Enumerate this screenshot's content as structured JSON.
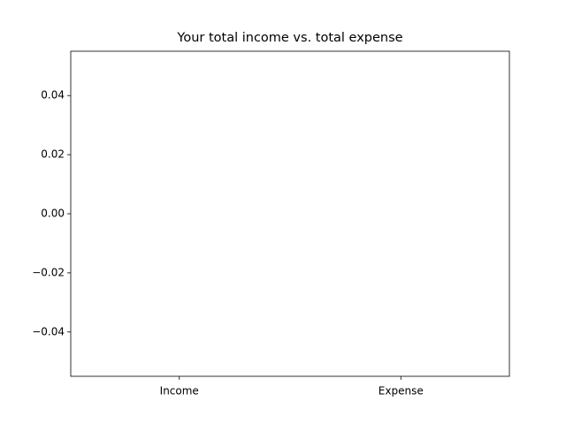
{
  "chart_data": {
    "type": "bar",
    "title": "Your total income vs. total expense",
    "categories": [
      "Income",
      "Expense"
    ],
    "values": [
      0,
      0
    ],
    "color": "#1f77b4",
    "ylim": [
      -0.055,
      0.055
    ],
    "yticks": [
      {
        "value": -0.04,
        "label": "−0.04"
      },
      {
        "value": -0.02,
        "label": "−0.02"
      },
      {
        "value": 0,
        "label": "0.00"
      },
      0.02,
      0.04
    ],
    "grid": false
  }
}
